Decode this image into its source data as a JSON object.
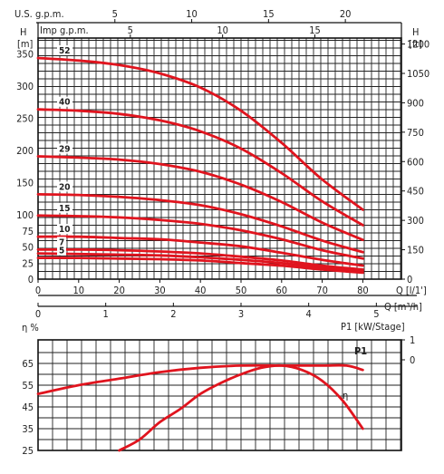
{
  "chart_data": [
    {
      "type": "line",
      "top_axes": {
        "usgpm_label": "U.S. g.p.m.",
        "usgpm_ticks": [
          "5",
          "10",
          "15",
          "20"
        ],
        "usgpm_values": [
          5,
          10,
          15,
          20
        ],
        "impgpm_label": "Imp g.p.m.",
        "impgpm_ticks": [
          "5",
          "10",
          "15"
        ],
        "impgpm_values": [
          5,
          10,
          15
        ]
      },
      "left_axis": {
        "title": "H",
        "unit": "[m]",
        "ylim": [
          0,
          375
        ],
        "ticks": [
          "0",
          "25",
          "50",
          "75",
          "100",
          "150",
          "200",
          "250",
          "300",
          "350"
        ],
        "tick_values": [
          0,
          25,
          50,
          75,
          100,
          150,
          200,
          250,
          300,
          350
        ]
      },
      "right_axis": {
        "title": "H",
        "unit": "[ft]",
        "ticks": [
          "0",
          "150",
          "300",
          "450",
          "600",
          "750",
          "900",
          "1050",
          "1200"
        ],
        "tick_values": [
          0,
          150,
          300,
          450,
          600,
          750,
          900,
          1050,
          1200
        ]
      },
      "bottom_axes": {
        "lpm_ticks": [
          "0",
          "10",
          "20",
          "30",
          "40",
          "50",
          "60",
          "70",
          "80"
        ],
        "lpm_values": [
          0,
          10,
          20,
          30,
          40,
          50,
          60,
          70,
          80
        ],
        "lpm_label": "Q [l/1']",
        "m3h_ticks": [
          "0",
          "1",
          "2",
          "3",
          "4",
          "5"
        ],
        "m3h_values": [
          0,
          1,
          2,
          3,
          4,
          5
        ],
        "m3h_label": "Q [m³/h]"
      },
      "series": [
        {
          "name": "52",
          "x": [
            0,
            10,
            20,
            30,
            40,
            50,
            60,
            70,
            80
          ],
          "y": [
            344,
            340,
            333,
            320,
            298,
            262,
            212,
            155,
            108
          ]
        },
        {
          "name": "40",
          "x": [
            0,
            10,
            20,
            30,
            40,
            50,
            60,
            70,
            80
          ],
          "y": [
            264,
            262,
            257,
            247,
            230,
            203,
            165,
            121,
            84
          ]
        },
        {
          "name": "29",
          "x": [
            0,
            10,
            20,
            30,
            40,
            50,
            60,
            70,
            80
          ],
          "y": [
            191,
            189,
            186,
            179,
            167,
            147,
            120,
            88,
            61
          ]
        },
        {
          "name": "20",
          "x": [
            0,
            10,
            20,
            30,
            40,
            50,
            60,
            70,
            80
          ],
          "y": [
            132,
            131,
            128,
            123,
            115,
            101,
            82,
            60,
            42
          ]
        },
        {
          "name": "15",
          "x": [
            0,
            10,
            20,
            30,
            40,
            50,
            60,
            70,
            80
          ],
          "y": [
            99,
            98,
            96,
            92,
            86,
            76,
            62,
            45,
            32
          ]
        },
        {
          "name": "10",
          "x": [
            0,
            10,
            20,
            30,
            40,
            50,
            60,
            70,
            80
          ],
          "y": [
            66,
            66,
            64,
            62,
            57,
            51,
            41,
            30,
            21
          ]
        },
        {
          "name": "7",
          "x": [
            0,
            10,
            20,
            30,
            40,
            50,
            60,
            70,
            80
          ],
          "y": [
            46,
            46,
            45,
            43,
            40,
            35,
            29,
            21,
            15
          ]
        },
        {
          "name": "",
          "x": [
            0,
            10,
            20,
            30,
            40,
            50,
            60,
            70,
            80
          ],
          "y": [
            40,
            39,
            38,
            37,
            34,
            30,
            25,
            18,
            13
          ]
        },
        {
          "name": "5",
          "x": [
            0,
            10,
            20,
            30,
            40,
            50,
            60,
            70,
            80
          ],
          "y": [
            33,
            33,
            32,
            31,
            29,
            25,
            21,
            15,
            10
          ]
        }
      ],
      "xlim": [
        0,
        88
      ],
      "grid": true,
      "line_color": "#e0141e"
    },
    {
      "type": "line",
      "left_label": "η %",
      "right_label": "P1 [kW/Stage]",
      "left_ticks": [
        "25",
        "35",
        "45",
        "55",
        "65"
      ],
      "left_tick_values": [
        25,
        35,
        45,
        55,
        65
      ],
      "right_ticks": [
        "0",
        "1"
      ],
      "ylim": [
        25,
        72
      ],
      "xlim": [
        0,
        88
      ],
      "series": [
        {
          "name": "P1",
          "x": [
            0,
            10,
            20,
            30,
            40,
            50,
            60,
            70,
            76,
            80
          ],
          "y": [
            51,
            55,
            58,
            61,
            63,
            64,
            64,
            64,
            64,
            62
          ]
        },
        {
          "name": "η",
          "x": [
            20,
            25,
            30,
            35,
            40,
            45,
            50,
            55,
            60,
            65,
            70,
            75,
            80
          ],
          "y": [
            25,
            30,
            38,
            44,
            51,
            56,
            60,
            63,
            64,
            62,
            57,
            48,
            35
          ]
        }
      ],
      "grid": true,
      "line_color": "#e0141e"
    }
  ]
}
